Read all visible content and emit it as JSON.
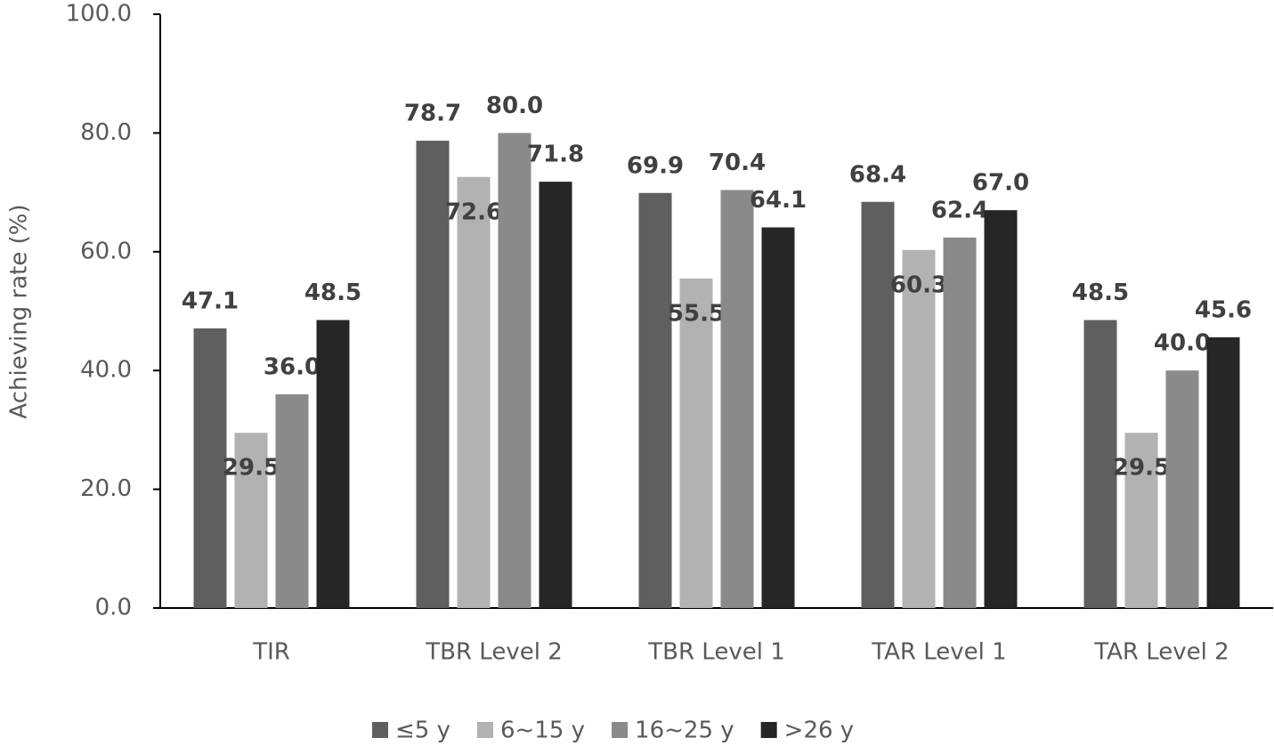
{
  "chart_data": {
    "type": "bar",
    "y_label": "Achieving rate (%)",
    "categories": [
      "TIR",
      "TBR Level 2",
      "TBR Level 1",
      "TAR Level 1",
      "TAR Level 2"
    ],
    "series": [
      {
        "name": "≤5 y",
        "color": "#5f5f5f",
        "values": [
          47.1,
          78.7,
          69.9,
          68.4,
          48.5
        ],
        "value_labels": [
          "47.1",
          "78.7",
          "69.9",
          "68.4",
          "48.5"
        ]
      },
      {
        "name": "6~15 y",
        "color": "#b2b2b2",
        "values": [
          29.5,
          72.6,
          55.5,
          60.3,
          29.5
        ],
        "value_labels": [
          "29.5",
          "72.6",
          "55.5",
          "60.3",
          "29.5"
        ]
      },
      {
        "name": "16~25 y",
        "color": "#8a8a8a",
        "values": [
          36.0,
          80.0,
          70.4,
          62.4,
          40.0
        ],
        "value_labels": [
          "36.0",
          "80.0",
          "70.4",
          "62.4",
          "40.0"
        ]
      },
      {
        "name": ">26 y",
        "color": "#262626",
        "values": [
          48.5,
          71.8,
          64.1,
          67.0,
          45.6
        ],
        "value_labels": [
          "48.5",
          "71.8",
          "64.1",
          "67.0",
          "45.6"
        ]
      }
    ],
    "ylim": [
      0,
      100
    ],
    "yticks": [
      {
        "value": 0,
        "label": "0.0"
      },
      {
        "value": 20,
        "label": "20.0"
      },
      {
        "value": 40,
        "label": "40.0"
      },
      {
        "value": 60,
        "label": "60.0"
      },
      {
        "value": 80,
        "label": "80.0"
      },
      {
        "value": 100,
        "label": "100.0"
      }
    ],
    "legend": "bottom"
  }
}
